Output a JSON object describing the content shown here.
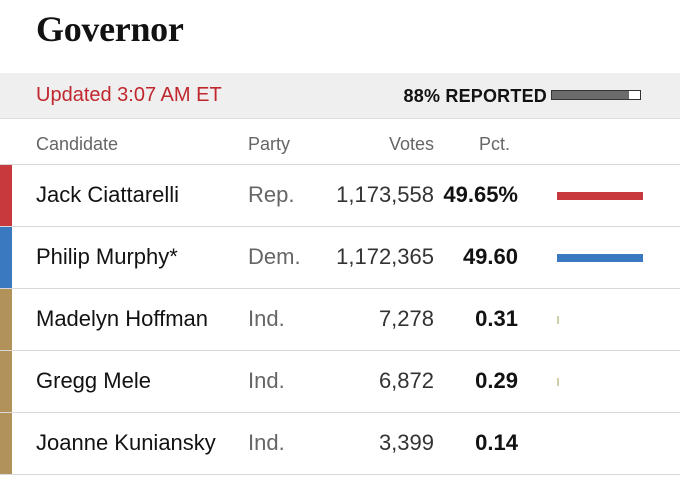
{
  "race": {
    "title": "Governor"
  },
  "status": {
    "updated": "Updated 3:07 AM ET",
    "reported_label": "88% REPORTED",
    "reported_fraction": 0.88
  },
  "columns": {
    "candidate": "Candidate",
    "party": "Party",
    "votes": "Votes",
    "pct": "Pct."
  },
  "colors": {
    "rep": "#c8393d",
    "dem": "#3a78c0",
    "ind": "#b0925a",
    "ind_bar": "#cfcfa8",
    "reported_fill": "#6b6b6b"
  },
  "candidates": [
    {
      "name": "Jack Ciattarelli",
      "party": "Rep.",
      "votes": "1,173,558",
      "pct": "49.65%",
      "pct_value": 49.65,
      "color": "#c8393d"
    },
    {
      "name": "Philip Murphy*",
      "party": "Dem.",
      "votes": "1,172,365",
      "pct": "49.60",
      "pct_value": 49.6,
      "color": "#3a78c0"
    },
    {
      "name": "Madelyn Hoffman",
      "party": "Ind.",
      "votes": "7,278",
      "pct": "0.31",
      "pct_value": 0.31,
      "color": "#b0925a"
    },
    {
      "name": "Gregg Mele",
      "party": "Ind.",
      "votes": "6,872",
      "pct": "0.29",
      "pct_value": 0.29,
      "color": "#b0925a"
    },
    {
      "name": "Joanne Kuniansky",
      "party": "Ind.",
      "votes": "3,399",
      "pct": "0.14",
      "pct_value": 0.14,
      "color": "#b0925a"
    }
  ]
}
